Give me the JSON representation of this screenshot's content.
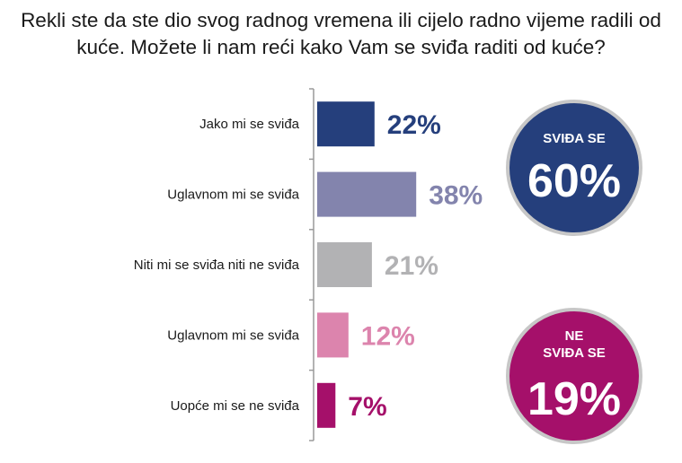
{
  "title": "Rekli ste da ste dio svog radnog vremena ili cijelo radno vijeme radili od kuće. Možete li nam reći kako Vam se sviđa raditi od kuće?",
  "chart_data": {
    "type": "bar",
    "orientation": "horizontal",
    "categories": [
      "Jako mi se sviđa",
      "Uglavnom mi se sviđa",
      "Niti mi se sviđa niti ne sviđa",
      "Uglavnom mi se sviđa",
      "Uopće mi se ne sviđa"
    ],
    "values": [
      22,
      38,
      21,
      12,
      7
    ],
    "value_labels": [
      "22%",
      "38%",
      "21%",
      "12%",
      "7%"
    ],
    "colors": [
      "#253f7c",
      "#8384ad",
      "#b2b2b4",
      "#dc84ad",
      "#a5106a"
    ],
    "xlim": [
      0,
      100
    ],
    "grid": false
  },
  "summary": {
    "like": {
      "label": "SVIĐA SE",
      "value": "60%",
      "color": "#253f7c"
    },
    "dislike": {
      "label": "NE\nSVIĐA SE",
      "value": "19%",
      "color": "#a5106a"
    }
  }
}
